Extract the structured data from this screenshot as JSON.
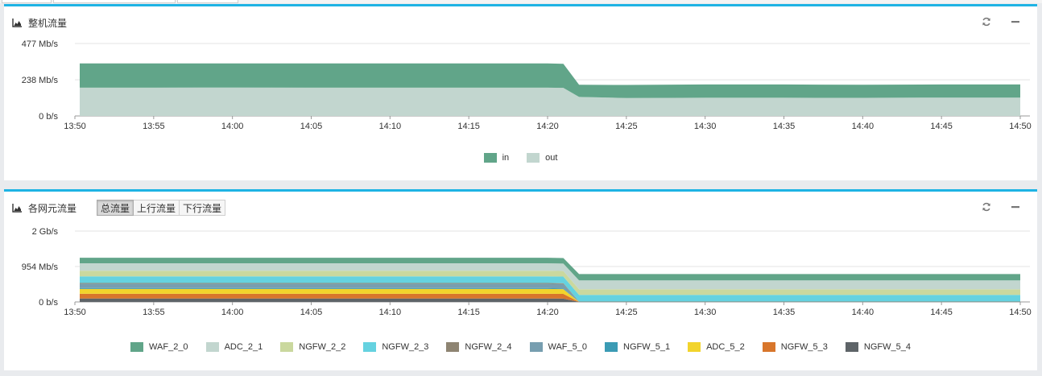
{
  "chart_data": [
    {
      "type": "area",
      "title": "整机流量",
      "x_ticks": [
        "13:50",
        "13:55",
        "14:00",
        "14:05",
        "14:10",
        "14:15",
        "14:20",
        "14:25",
        "14:30",
        "14:35",
        "14:40",
        "14:45",
        "14:50"
      ],
      "y_ticks": [
        "477 Mb/s",
        "238 Mb/s",
        "0 b/s"
      ],
      "y_tick_values": [
        477,
        238,
        0
      ],
      "ylim": [
        0,
        477
      ],
      "y_unit": "Mb/s",
      "grid": true,
      "stacked": true,
      "legend_position": "bottom-center",
      "x": [
        "13:50",
        "13:55",
        "14:00",
        "14:05",
        "14:10",
        "14:15",
        "14:20",
        "14:21",
        "14:22",
        "14:25",
        "14:30",
        "14:35",
        "14:40",
        "14:45",
        "14:50"
      ],
      "series": [
        {
          "name": "out",
          "color": "#c2d6cf",
          "values": [
            186,
            186,
            187,
            186,
            186,
            186,
            186,
            185,
            125,
            118,
            120,
            120,
            119,
            121,
            121
          ]
        },
        {
          "name": "in",
          "color": "#61a589",
          "values": [
            160,
            160,
            159,
            160,
            160,
            160,
            160,
            158,
            80,
            86,
            87,
            87,
            86,
            86,
            86
          ]
        }
      ]
    },
    {
      "type": "area",
      "title": "各网元流量",
      "x_ticks": [
        "13:50",
        "13:55",
        "14:00",
        "14:05",
        "14:10",
        "14:15",
        "14:20",
        "14:25",
        "14:30",
        "14:35",
        "14:40",
        "14:45",
        "14:50"
      ],
      "y_ticks": [
        "2 Gb/s",
        "954 Mb/s",
        "0 b/s"
      ],
      "y_tick_values": [
        1908,
        954,
        0
      ],
      "ylim": [
        0,
        1908
      ],
      "y_unit": "Mb/s",
      "grid": true,
      "stacked": true,
      "legend_position": "bottom-center",
      "x": [
        "13:50",
        "13:55",
        "14:00",
        "14:05",
        "14:10",
        "14:15",
        "14:20",
        "14:21",
        "14:22",
        "14:25",
        "14:30",
        "14:35",
        "14:40",
        "14:45",
        "14:50"
      ],
      "series": [
        {
          "name": "NGFW_5_4",
          "color": "#5e6468",
          "values": [
            90,
            90,
            90,
            90,
            90,
            90,
            90,
            88,
            0,
            0,
            0,
            0,
            0,
            0,
            0
          ]
        },
        {
          "name": "NGFW_5_3",
          "color": "#d8762b",
          "values": [
            130,
            130,
            130,
            130,
            130,
            130,
            130,
            128,
            0,
            0,
            0,
            0,
            0,
            0,
            0
          ]
        },
        {
          "name": "ADC_5_2",
          "color": "#f2d42c",
          "values": [
            130,
            130,
            130,
            130,
            130,
            130,
            130,
            128,
            0,
            0,
            0,
            0,
            0,
            0,
            0
          ]
        },
        {
          "name": "NGFW_5_1",
          "color": "#3b9bb4",
          "values": [
            20,
            20,
            20,
            20,
            20,
            20,
            20,
            20,
            0,
            0,
            0,
            0,
            0,
            0,
            0
          ]
        },
        {
          "name": "WAF_5_0",
          "color": "#779eb0",
          "values": [
            120,
            120,
            120,
            120,
            120,
            120,
            120,
            118,
            0,
            0,
            0,
            0,
            0,
            0,
            0
          ]
        },
        {
          "name": "NGFW_2_4",
          "color": "#8e8472",
          "values": [
            20,
            20,
            20,
            20,
            20,
            20,
            20,
            20,
            10,
            10,
            10,
            10,
            10,
            10,
            10
          ]
        },
        {
          "name": "NGFW_2_3",
          "color": "#65d2e0",
          "values": [
            180,
            180,
            180,
            180,
            180,
            180,
            180,
            180,
            180,
            180,
            180,
            180,
            180,
            180,
            180
          ]
        },
        {
          "name": "NGFW_2_2",
          "color": "#cad89e",
          "values": [
            150,
            150,
            150,
            150,
            150,
            150,
            150,
            150,
            150,
            150,
            150,
            150,
            150,
            150,
            150
          ]
        },
        {
          "name": "ADC_2_1",
          "color": "#c2d6cf",
          "values": [
            200,
            200,
            200,
            200,
            200,
            200,
            200,
            200,
            240,
            240,
            240,
            240,
            240,
            240,
            240
          ]
        },
        {
          "name": "WAF_2_0",
          "color": "#61a589",
          "values": [
            150,
            150,
            150,
            150,
            150,
            150,
            150,
            150,
            170,
            170,
            170,
            170,
            170,
            170,
            170
          ]
        }
      ],
      "legend_order": [
        "WAF_2_0",
        "ADC_2_1",
        "NGFW_2_2",
        "NGFW_2_3",
        "NGFW_2_4",
        "WAF_5_0",
        "NGFW_5_1",
        "ADC_5_2",
        "NGFW_5_3",
        "NGFW_5_4"
      ]
    }
  ],
  "panel2_tabs": [
    "总流量",
    "上行流量",
    "下行流量"
  ],
  "panel2_active_tab": "总流量",
  "icons": {
    "chart": "area-chart-icon",
    "refresh": "refresh-icon",
    "minimize": "minimize-icon"
  },
  "accent_color": "#1eb3e4"
}
